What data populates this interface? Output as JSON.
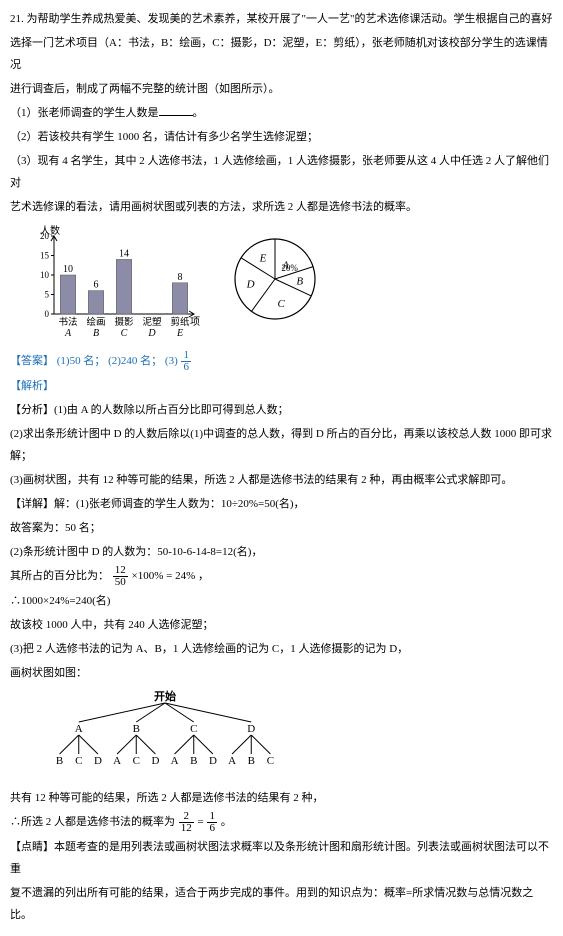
{
  "question": {
    "number": "21. ",
    "body1": "为帮助学生养成热爱美、发现美的艺术素养，某校开展了\"一人一艺\"的艺术选修课活动。学生根据自己的喜好",
    "body2": "选择一门艺术项目（A：书法，B：绘画，C：摄影，D：泥塑，E：剪纸），张老师随机对该校部分学生的选课情况",
    "body3": "进行调查后，制成了两幅不完整的统计图（如图所示）。",
    "q1": "（1）张老师调查的学生人数是",
    "q1_end": "。",
    "q2": "（2）若该校共有学生 1000 名，请估计有多少名学生选修泥塑；",
    "q3a": "（3）现有 4 名学生，其中 2 人选修书法，1 人选修绘画，1 人选修摄影，张老师要从这 4 人中任选 2 人了解他们对",
    "q3b": "艺术选修课的看法，请用画树状图或列表的方法，求所选 2 人都是选修书法的概率。"
  },
  "bar_chart": {
    "y_label": "人数",
    "x_label": "项目",
    "ymax": 20,
    "ytick_step": 5,
    "yticks": [
      0,
      5,
      10,
      15,
      20
    ],
    "categories": [
      "书法",
      "绘画",
      "摄影",
      "泥塑",
      "剪纸"
    ],
    "cat_letters": [
      "A",
      "B",
      "C",
      "D",
      "E"
    ],
    "values": [
      10,
      6,
      14,
      null,
      8
    ],
    "bar_color": "#8c8ca8",
    "axis_color": "#000",
    "bg": "#fff",
    "placeholder_dash_color": "#666"
  },
  "pie_chart": {
    "labels": [
      "A",
      "B",
      "C",
      "D",
      "E"
    ],
    "A_pct_label": "20%",
    "outline": "#000"
  },
  "answer": {
    "label": "【答案】",
    "a1": "(1)50 名；",
    "a2": "(2)240 名；",
    "a3_prefix": "(3)",
    "a3_num": "1",
    "a3_den": "6"
  },
  "analysis_label": "【解析】",
  "analysis": {
    "fx_label": "【分析】",
    "fx1": "(1)由 A 的人数除以所占百分比即可得到总人数；",
    "fx2": "(2)求出条形统计图中 D 的人数后除以(1)中调查的总人数，得到 D 所占的百分比，再乘以该校总人数 1000 即可求解；",
    "fx3": "(3)画树状图，共有 12 种等可能的结果，所选 2 人都是选修书法的结果有 2 种，再由概率公式求解即可。",
    "xj_label": "【详解】",
    "xj1": "解：(1)张老师调查的学生人数为：10÷20%=50(名)，",
    "xj1b": "故答案为：50 名；",
    "xj2": "(2)条形统计图中 D 的人数为：50-10-6-14-8=12(名)，",
    "xj2b_pre": "其所占的百分比为：",
    "xj2b_num": "12",
    "xj2b_den": "50",
    "xj2b_post": "×100% = 24% ，",
    "xj2c": "∴1000×24%=240(名)",
    "xj2d": "故该校 1000 人中，共有 240 人选修泥塑；",
    "xj3": "(3)把 2 人选修书法的记为 A、B，1 人选修绘画的记为 C，1 人选修摄影的记为 D，",
    "xj3b": "画树状图如图："
  },
  "tree": {
    "root": "开始",
    "level1": [
      "A",
      "B",
      "C",
      "D"
    ],
    "level2": [
      [
        "B",
        "C",
        "D"
      ],
      [
        "A",
        "C",
        "D"
      ],
      [
        "A",
        "B",
        "D"
      ],
      [
        "A",
        "B",
        "C"
      ]
    ],
    "line_color": "#000"
  },
  "after_tree": {
    "t1": "共有 12 种等可能的结果，所选 2 人都是选修书法的结果有 2 种，",
    "t2_pre": "∴所选 2 人都是选修书法的概率为",
    "t2_n1": "2",
    "t2_d1": "12",
    "t2_eq": "=",
    "t2_n2": "1",
    "t2_d2": "6",
    "t2_post": " 。"
  },
  "dj": {
    "label": "【点睛】",
    "l1": "本题考查的是用列表法或画树状图法求概率以及条形统计图和扇形统计图。列表法或画树状图法可以不重",
    "l2": "复不遗漏的列出所有可能的结果，适合于两步完成的事件。用到的知识点为：概率=所求情况数与总情况数之比。"
  }
}
